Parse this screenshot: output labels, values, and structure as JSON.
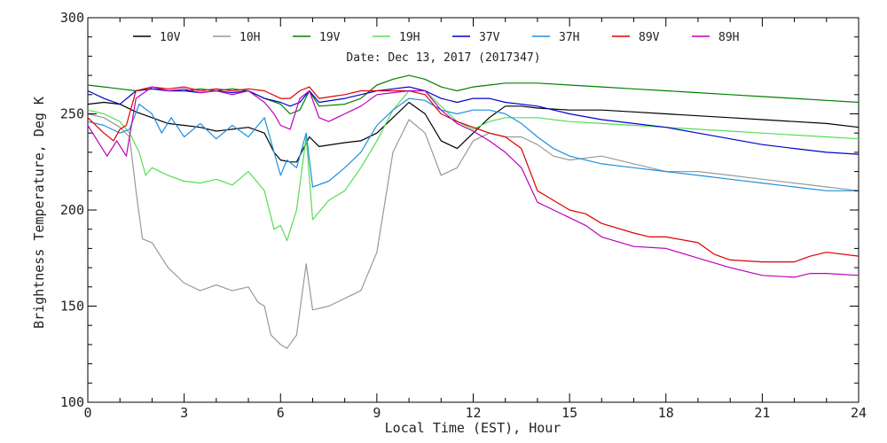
{
  "chart_data": {
    "type": "line",
    "xlabel": "Local Time (EST), Hour",
    "ylabel": "Brightness Temperature, Deg K",
    "annotation": "Date: Dec 13, 2017 (2017347)",
    "xlim": [
      0,
      24
    ],
    "ylim": [
      100,
      300
    ],
    "xticks": [
      0,
      3,
      6,
      9,
      12,
      15,
      18,
      21,
      24
    ],
    "yticks": [
      100,
      150,
      200,
      250,
      300
    ],
    "grid": false,
    "legend_position": "top",
    "series": [
      {
        "name": "10V",
        "color": "#000000",
        "x": [
          0,
          0.5,
          1,
          1.5,
          2,
          2.5,
          3,
          3.5,
          4,
          4.5,
          5,
          5.5,
          5.8,
          6,
          6.3,
          6.5,
          6.9,
          7.2,
          8,
          8.5,
          9,
          9.5,
          10,
          10.5,
          11,
          11.5,
          12,
          12.5,
          13,
          13.5,
          14,
          15,
          16,
          17,
          18,
          19,
          20,
          21,
          22,
          23,
          24
        ],
        "y": [
          255,
          256,
          255,
          251,
          248,
          245,
          244,
          243,
          241,
          242,
          243,
          240,
          230,
          226,
          225,
          225,
          238,
          233,
          235,
          236,
          240,
          248,
          256,
          250,
          236,
          232,
          240,
          248,
          254,
          254,
          253,
          252,
          252,
          251,
          250,
          249,
          248,
          247,
          246,
          245,
          243
        ]
      },
      {
        "name": "10H",
        "color": "#999999",
        "x": [
          0,
          0.5,
          1,
          1.3,
          1.5,
          1.7,
          2,
          2.5,
          3,
          3.5,
          4,
          4.5,
          5,
          5.3,
          5.5,
          5.7,
          6,
          6.2,
          6.5,
          6.8,
          7,
          7.5,
          8,
          8.5,
          9,
          9.5,
          10,
          10.5,
          11,
          11.5,
          12,
          12.5,
          13,
          13.5,
          14,
          14.5,
          15,
          16,
          16.5,
          17,
          18,
          19,
          20,
          21,
          22,
          23,
          24
        ],
        "y": [
          250,
          248,
          243,
          238,
          210,
          185,
          183,
          170,
          162,
          158,
          161,
          158,
          160,
          152,
          150,
          135,
          130,
          128,
          135,
          172,
          148,
          150,
          154,
          158,
          178,
          230,
          247,
          240,
          218,
          222,
          236,
          240,
          238,
          238,
          234,
          228,
          226,
          228,
          226,
          224,
          220,
          220,
          218,
          216,
          214,
          212,
          210
        ]
      },
      {
        "name": "19V",
        "color": "#008000",
        "x": [
          0,
          0.5,
          1,
          1.5,
          2,
          2.5,
          3,
          3.5,
          4,
          4.5,
          5,
          5.5,
          6,
          6.3,
          6.6,
          6.9,
          7.2,
          8,
          8.5,
          9,
          9.5,
          10,
          10.5,
          11,
          11.5,
          12,
          12.5,
          13,
          14,
          15,
          16,
          17,
          18,
          19,
          20,
          21,
          22,
          23,
          24
        ],
        "y": [
          265,
          264,
          263,
          262,
          263,
          262,
          262,
          263,
          262,
          263,
          262,
          258,
          255,
          250,
          252,
          262,
          254,
          255,
          258,
          265,
          268,
          270,
          268,
          264,
          262,
          264,
          265,
          266,
          266,
          265,
          264,
          263,
          262,
          261,
          260,
          259,
          258,
          257,
          256
        ]
      },
      {
        "name": "19H",
        "color": "#55dd55",
        "x": [
          0,
          0.5,
          1,
          1.3,
          1.6,
          1.8,
          2,
          2.5,
          3,
          3.5,
          4,
          4.5,
          5,
          5.5,
          5.8,
          6,
          6.2,
          6.5,
          6.8,
          7,
          7.5,
          8,
          8.5,
          9,
          9.5,
          10,
          10.5,
          11,
          11.5,
          12,
          12.5,
          13,
          14,
          15,
          16,
          17,
          18,
          19,
          20,
          21,
          22,
          23,
          24
        ],
        "y": [
          252,
          250,
          246,
          240,
          230,
          218,
          222,
          218,
          215,
          214,
          216,
          213,
          220,
          210,
          190,
          192,
          184,
          200,
          238,
          195,
          205,
          210,
          222,
          236,
          252,
          262,
          262,
          254,
          246,
          242,
          246,
          248,
          248,
          246,
          245,
          244,
          243,
          242,
          241,
          240,
          239,
          238,
          237
        ]
      },
      {
        "name": "37V",
        "color": "#0000cc",
        "x": [
          0,
          0.5,
          1,
          1.5,
          2,
          2.5,
          3,
          3.5,
          4,
          4.5,
          5,
          5.5,
          6,
          6.3,
          6.6,
          6.9,
          7.2,
          8,
          8.5,
          9,
          9.5,
          10,
          10.5,
          11,
          11.5,
          12,
          12.5,
          13,
          14,
          15,
          16,
          17,
          18,
          19,
          20,
          21,
          22,
          23,
          24
        ],
        "y": [
          262,
          258,
          255,
          262,
          263,
          262,
          262,
          261,
          262,
          261,
          262,
          258,
          256,
          254,
          256,
          262,
          256,
          258,
          260,
          262,
          263,
          264,
          262,
          258,
          256,
          258,
          258,
          256,
          254,
          250,
          247,
          245,
          243,
          240,
          237,
          234,
          232,
          230,
          229
        ]
      },
      {
        "name": "37H",
        "color": "#1e90dd",
        "x": [
          0,
          0.5,
          1,
          1.3,
          1.6,
          2,
          2.3,
          2.6,
          3,
          3.5,
          4,
          4.5,
          5,
          5.5,
          5.8,
          6,
          6.2,
          6.5,
          6.8,
          7,
          7.5,
          8,
          8.5,
          9,
          9.5,
          10,
          10.5,
          11,
          11.5,
          12,
          12.5,
          13,
          13.5,
          14,
          14.5,
          15,
          16,
          17,
          18,
          19,
          20,
          21,
          22,
          23,
          24
        ],
        "y": [
          246,
          244,
          240,
          242,
          255,
          250,
          240,
          248,
          238,
          245,
          237,
          244,
          238,
          248,
          230,
          218,
          226,
          222,
          240,
          212,
          215,
          222,
          230,
          244,
          252,
          258,
          257,
          252,
          250,
          252,
          252,
          250,
          245,
          238,
          232,
          228,
          224,
          222,
          220,
          218,
          216,
          214,
          212,
          210,
          210
        ]
      },
      {
        "name": "89V",
        "color": "#dd0000",
        "x": [
          0,
          0.5,
          0.8,
          1,
          1.2,
          1.5,
          2,
          2.5,
          3,
          3.5,
          4,
          4.5,
          5,
          5.5,
          6,
          6.3,
          6.6,
          6.9,
          7.2,
          8,
          8.5,
          9,
          9.5,
          10,
          10.5,
          11,
          11.5,
          12,
          12.5,
          13,
          13.5,
          14,
          14.5,
          15,
          15.5,
          16,
          17,
          17.5,
          18,
          19,
          19.5,
          20,
          21,
          22,
          22.5,
          23,
          24
        ],
        "y": [
          248,
          240,
          236,
          242,
          244,
          262,
          264,
          263,
          264,
          262,
          263,
          262,
          263,
          262,
          258,
          258,
          262,
          264,
          258,
          260,
          262,
          262,
          262,
          262,
          260,
          250,
          246,
          243,
          240,
          238,
          232,
          210,
          205,
          200,
          198,
          193,
          188,
          186,
          186,
          183,
          177,
          174,
          173,
          173,
          176,
          178,
          176
        ]
      },
      {
        "name": "89H",
        "color": "#bb00bb",
        "x": [
          0,
          0.3,
          0.6,
          0.9,
          1.2,
          1.5,
          2,
          2.5,
          3,
          3.5,
          4,
          4.5,
          5,
          5.5,
          5.8,
          6,
          6.3,
          6.6,
          6.9,
          7.2,
          7.5,
          8,
          8.5,
          9,
          9.5,
          10,
          10.5,
          11,
          11.5,
          12,
          12.5,
          13,
          13.5,
          14,
          14.5,
          15,
          15.5,
          16,
          17,
          18,
          19,
          20,
          21,
          22,
          22.5,
          23,
          24
        ],
        "y": [
          244,
          236,
          228,
          236,
          228,
          258,
          264,
          262,
          263,
          261,
          262,
          260,
          262,
          256,
          250,
          244,
          242,
          258,
          262,
          248,
          246,
          250,
          254,
          260,
          261,
          262,
          262,
          252,
          245,
          241,
          236,
          230,
          222,
          204,
          200,
          196,
          192,
          186,
          181,
          180,
          175,
          170,
          166,
          165,
          167,
          167,
          166
        ]
      }
    ]
  }
}
